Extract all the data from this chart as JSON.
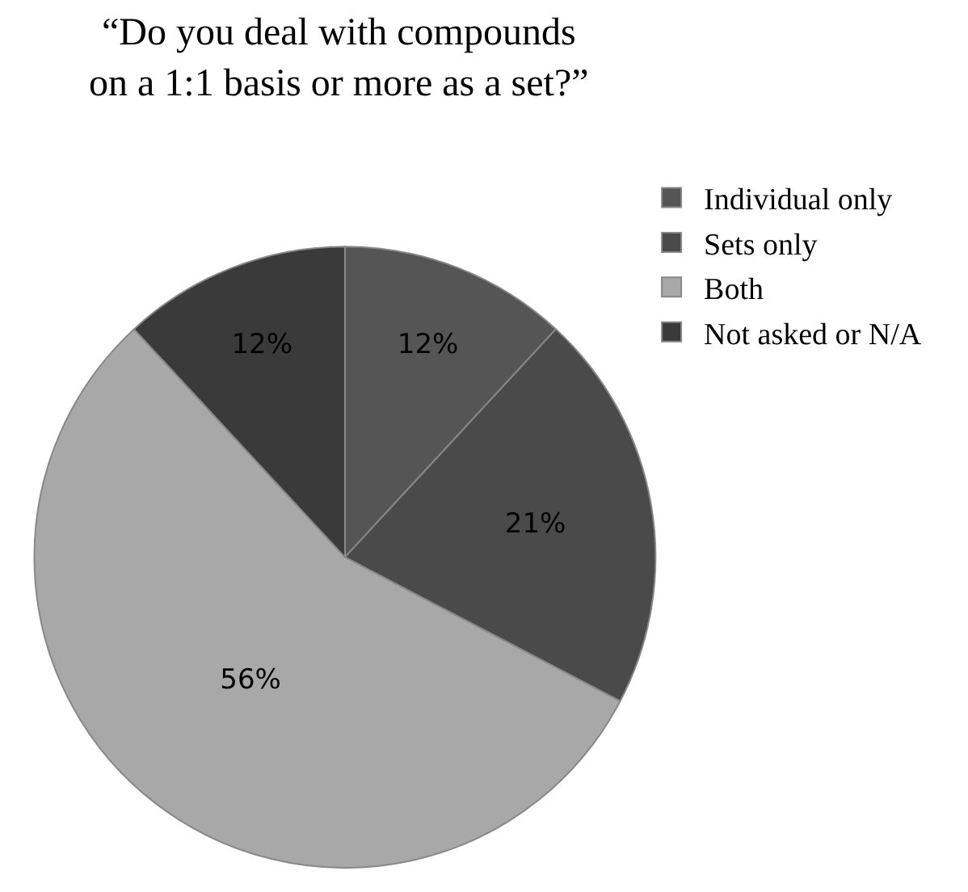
{
  "chart_data": {
    "type": "pie",
    "title": "“Do you deal with compounds\non a 1:1 basis or more as a set?”",
    "categories": [
      "Individual only",
      "Sets only",
      "Both",
      "Not asked or N/A"
    ],
    "values": [
      12,
      21,
      56,
      12
    ],
    "colors": [
      "#555555",
      "#4a4a4a",
      "#a8a8a8",
      "#3a3a3a"
    ],
    "value_labels": [
      "12%",
      "21%",
      "56%",
      "12%"
    ],
    "legend": "top right"
  }
}
